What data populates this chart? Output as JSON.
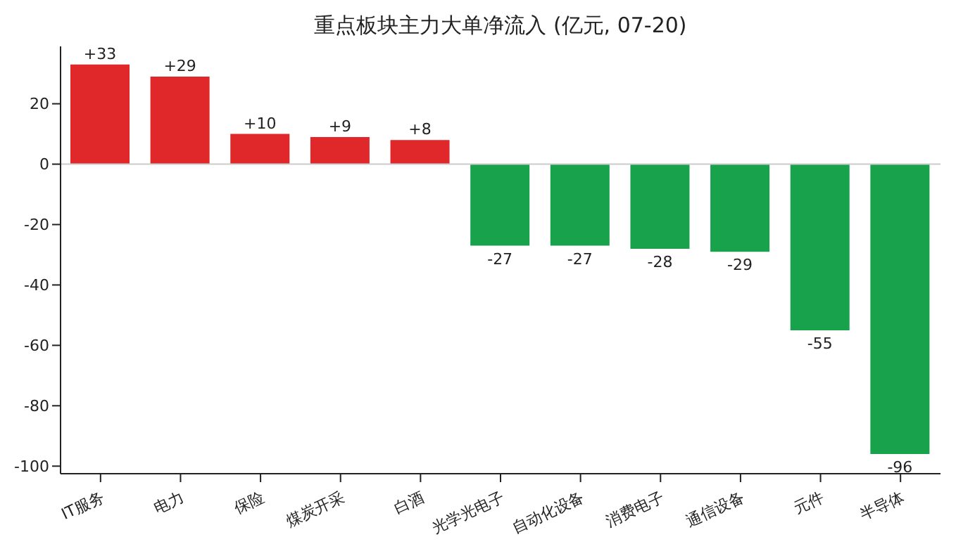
{
  "chart_data": {
    "type": "bar",
    "title": "重点板块主力大单净流入 (亿元, 07-20)",
    "categories": [
      "IT服务",
      "电力",
      "保险",
      "煤炭开采",
      "白酒",
      "光学光电子",
      "自动化设备",
      "消费电子",
      "通信设备",
      "元件",
      "半导体"
    ],
    "values": [
      33,
      29,
      10,
      9,
      8,
      -27,
      -27,
      -28,
      -29,
      -55,
      -96
    ],
    "value_labels": [
      "+33",
      "+29",
      "+10",
      "+9",
      "+8",
      "-27",
      "-27",
      "-28",
      "-29",
      "-55",
      "-96"
    ],
    "colors": [
      "#e0282a",
      "#e0282a",
      "#e0282a",
      "#e0282a",
      "#e0282a",
      "#17a24b",
      "#17a24b",
      "#17a24b",
      "#17a24b",
      "#17a24b",
      "#17a24b"
    ],
    "ylim": [
      -102.5,
      39
    ],
    "yticks": [
      -100,
      -80,
      -60,
      -40,
      -20,
      0,
      20
    ],
    "ref_lines": [
      {
        "axis": "y",
        "value": 0,
        "color": "#cccccc"
      }
    ],
    "grid": false,
    "legend": false
  }
}
